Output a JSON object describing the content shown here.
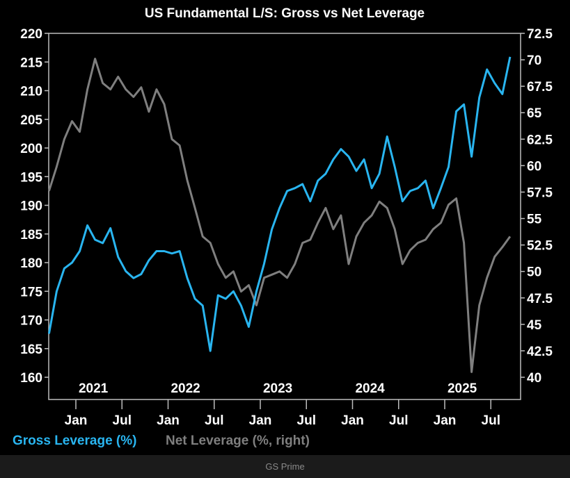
{
  "chart_data": {
    "type": "line",
    "title": "US Fundamental L/S: Gross vs Net Leverage",
    "left_axis": {
      "ylim": [
        156,
        220
      ],
      "ticks": [
        160,
        165,
        170,
        175,
        180,
        185,
        190,
        195,
        200,
        205,
        210,
        215,
        220
      ]
    },
    "right_axis": {
      "ylim": [
        38,
        72.5
      ],
      "ticks": [
        "40",
        "42.5",
        "45",
        "47.5",
        "50",
        "52.5",
        "55",
        "57.5",
        "60",
        "62.5",
        "65",
        "67.5",
        "70",
        "72.5"
      ]
    },
    "x_month_ticks": [
      {
        "date": "2021-01",
        "label": "Jan"
      },
      {
        "date": "2021-07",
        "label": "Jul"
      },
      {
        "date": "2022-01",
        "label": "Jan"
      },
      {
        "date": "2022-07",
        "label": "Jul"
      },
      {
        "date": "2023-01",
        "label": "Jan"
      },
      {
        "date": "2023-07",
        "label": "Jul"
      },
      {
        "date": "2024-01",
        "label": "Jan"
      },
      {
        "date": "2024-07",
        "label": "Jul"
      },
      {
        "date": "2025-01",
        "label": "Jan"
      },
      {
        "date": "2025-07",
        "label": "Jul"
      }
    ],
    "x_year_labels": [
      {
        "date": "2021-04",
        "label": "2021"
      },
      {
        "date": "2022-04",
        "label": "2022"
      },
      {
        "date": "2023-04",
        "label": "2023"
      },
      {
        "date": "2024-04",
        "label": "2024"
      },
      {
        "date": "2025-04",
        "label": "2025"
      }
    ],
    "x_range": [
      "2020-09",
      "2025-12"
    ],
    "grid": false,
    "legend_position": "bottom-left",
    "dates": [
      "2020-09",
      "2020-10",
      "2020-11",
      "2020-12",
      "2021-01",
      "2021-02",
      "2021-03",
      "2021-04",
      "2021-05",
      "2021-06",
      "2021-07",
      "2021-08",
      "2021-09",
      "2021-10",
      "2021-11",
      "2021-12",
      "2022-01",
      "2022-02",
      "2022-03",
      "2022-04",
      "2022-05",
      "2022-06",
      "2022-07",
      "2022-08",
      "2022-09",
      "2022-10",
      "2022-11",
      "2022-12",
      "2023-01",
      "2023-02",
      "2023-03",
      "2023-04",
      "2023-05",
      "2023-06",
      "2023-07",
      "2023-08",
      "2023-09",
      "2023-10",
      "2023-11",
      "2023-12",
      "2024-01",
      "2024-02",
      "2024-03",
      "2024-04",
      "2024-05",
      "2024-06",
      "2024-07",
      "2024-08",
      "2024-09",
      "2024-10",
      "2024-11",
      "2024-12",
      "2025-01",
      "2025-02",
      "2025-03",
      "2025-04",
      "2025-05",
      "2025-06",
      "2025-07",
      "2025-08",
      "2025-09"
    ],
    "series": [
      {
        "name": "Gross Leverage (%)",
        "axis": "left",
        "color": "#29b5f0",
        "values": [
          167.6,
          175,
          179,
          180,
          182,
          186.5,
          184,
          183.4,
          186,
          181,
          178.5,
          177.3,
          178,
          180.4,
          182,
          182,
          181.6,
          182,
          177.3,
          173.7,
          172.5,
          164.6,
          174.3,
          173.7,
          175,
          172.5,
          168.8,
          175,
          179.8,
          185.8,
          189.5,
          192.5,
          193,
          193.7,
          190.7,
          194.3,
          195.5,
          198,
          199.8,
          198.5,
          196,
          198,
          193,
          195.5,
          202,
          196.7,
          190.7,
          192.5,
          193,
          194.3,
          189.5,
          193,
          196.7,
          206.4,
          207.6,
          198.5,
          208.8,
          213.7,
          211.3,
          209.4,
          215.9
        ]
      },
      {
        "name": "Net Leverage (%, right)",
        "axis": "right",
        "color": "#7f7f7f",
        "values": [
          57.6,
          59.9,
          62.5,
          64.2,
          63.2,
          67.2,
          70.1,
          67.8,
          67.2,
          68.4,
          67.2,
          66.5,
          67.4,
          65.1,
          67.2,
          65.8,
          62.5,
          61.9,
          58.6,
          56,
          53.3,
          52.7,
          50.7,
          49.4,
          50,
          48.1,
          48.7,
          46.8,
          49.4,
          49.7,
          50,
          49.4,
          50.7,
          52.7,
          53,
          54.6,
          56,
          54,
          55.3,
          50.7,
          53.3,
          54.6,
          55.3,
          56.6,
          56,
          54,
          50.7,
          52,
          52.7,
          53,
          54,
          54.6,
          56.3,
          56.9,
          52.7,
          40.5,
          46.8,
          49.4,
          51.4,
          52.3,
          53.3
        ]
      }
    ]
  },
  "legend": {
    "gross": "Gross Leverage (%)",
    "net": "Net Leverage (%, right)"
  },
  "footer": {
    "source": "GS Prime"
  }
}
